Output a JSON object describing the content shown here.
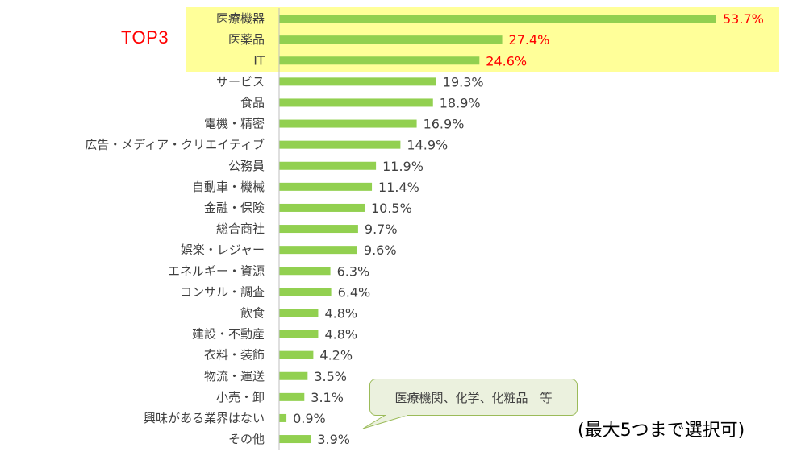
{
  "chart_data": {
    "type": "bar",
    "orientation": "horizontal",
    "categories": [
      "医療機器",
      "医薬品",
      "IT",
      "サービス",
      "食品",
      "電機・精密",
      "広告・メディア・クリエイティブ",
      "公務員",
      "自動車・機械",
      "金融・保険",
      "総合商社",
      "娯楽・レジャー",
      "エネルギー・資源",
      "コンサル・調査",
      "飲食",
      "建設・不動産",
      "衣料・装飾",
      "物流・運送",
      "小売・卸",
      "興味がある業界はない",
      "その他"
    ],
    "values": [
      53.7,
      27.4,
      24.6,
      19.3,
      18.9,
      16.9,
      14.9,
      11.9,
      11.4,
      10.5,
      9.7,
      9.6,
      6.3,
      6.4,
      4.8,
      4.8,
      4.2,
      3.5,
      3.1,
      0.9,
      3.9
    ],
    "value_labels": [
      "53.7%",
      "27.4%",
      "24.6%",
      "19.3%",
      "18.9%",
      "16.9%",
      "14.9%",
      "11.9%",
      "11.4%",
      "10.5%",
      "9.7%",
      "9.6%",
      "6.3%",
      "6.4%",
      "4.8%",
      "4.8%",
      "4.2%",
      "3.5%",
      "3.1%",
      "0.9%",
      "3.9%"
    ],
    "highlight_count": 3,
    "xlim": [
      0,
      53.7
    ],
    "grid": false,
    "legend": "none"
  },
  "annotations": {
    "top3_label": "TOP3",
    "callout_text": "医療機関、化学、化粧品　等",
    "note": "(最大5つまで選択可)"
  },
  "colors": {
    "bar": "#92d050",
    "highlight_band": "#ffff99",
    "highlight_text": "#ff0000",
    "normal_text": "#404040",
    "axis": "#bfbfbf",
    "callout_fill": "#ebf1de",
    "callout_border": "#9bbb59"
  }
}
